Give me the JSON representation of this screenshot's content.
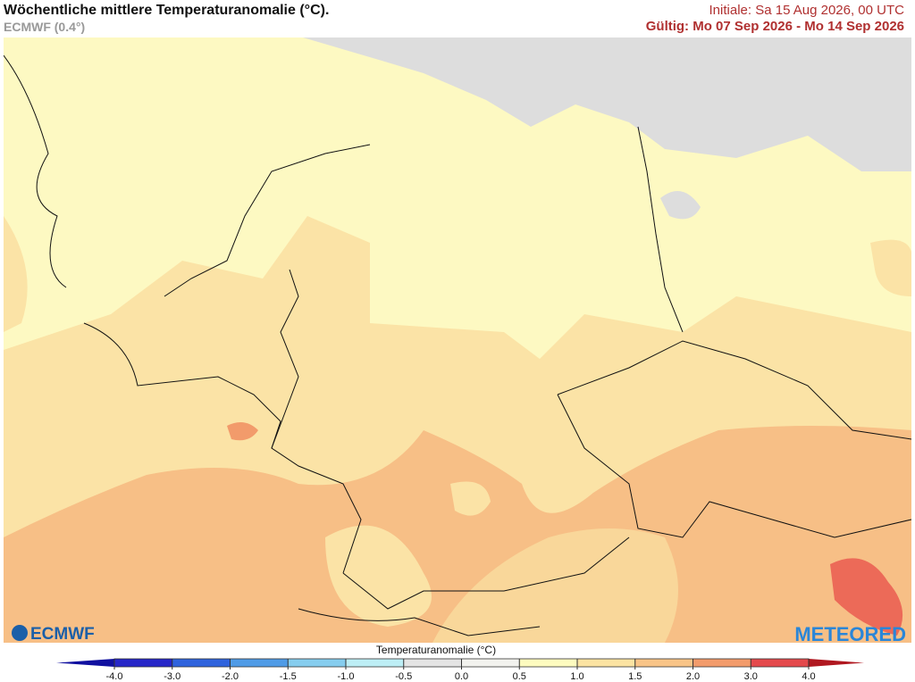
{
  "header": {
    "title": "Wöchentliche mittlere Temperaturanomalie (°C).",
    "model": "ECMWF (0.4°)",
    "init": "Initiale: Sa 15 Aug 2026, 00 UTC",
    "valid": "Gültig: Mo 07 Sep 2026 - Mo 14 Sep 2026"
  },
  "logos": {
    "left": "ECMWF",
    "right": "METEORED"
  },
  "legend": {
    "title": "Temperaturanomalie (°C)",
    "ticks": [
      {
        "value": -4,
        "label": "-4.0"
      },
      {
        "value": -3,
        "label": "-3.0"
      },
      {
        "value": -2,
        "label": "-2.0"
      },
      {
        "value": -1.5,
        "label": "-1.5"
      },
      {
        "value": -1,
        "label": "-1.0"
      },
      {
        "value": -0.5,
        "label": "-0.5"
      },
      {
        "value": 0,
        "label": "0.0"
      },
      {
        "value": 0.5,
        "label": "0.5"
      },
      {
        "value": 1,
        "label": "1.0"
      },
      {
        "value": 1.5,
        "label": "1.5"
      },
      {
        "value": 2,
        "label": "2.0"
      },
      {
        "value": 3,
        "label": "3.0"
      },
      {
        "value": 4,
        "label": "4.0"
      }
    ],
    "colors": [
      "#2626c8",
      "#2f63dd",
      "#4f9be6",
      "#86cdee",
      "#bdeef5",
      "#e4e4e4",
      "#f2f2ee",
      "#fdfbbf",
      "#fbe3a2",
      "#f8c487",
      "#f29b6b",
      "#e4494c"
    ],
    "under_color": "#1010a0",
    "over_color": "#b01820"
  }
}
